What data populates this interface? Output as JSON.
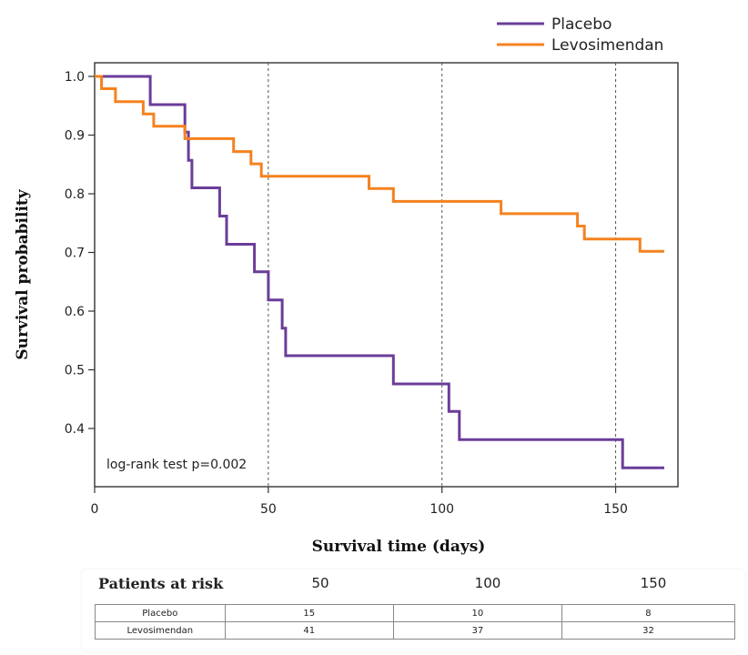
{
  "chart_data": {
    "type": "line",
    "step": true,
    "xlabel": "Survival time (days)",
    "ylabel": "Survival probability",
    "xlim": [
      0,
      155
    ],
    "ylim": [
      0.3,
      1.02
    ],
    "xticks": [
      0,
      50,
      100,
      150
    ],
    "yticks": [
      1.0,
      0.9,
      0.8,
      0.7,
      0.6,
      0.5,
      0.4
    ],
    "vlines": [
      50,
      100,
      150
    ],
    "grid": false,
    "legend_position": "top-right",
    "annotation": "log-rank test p=0.002",
    "series": [
      {
        "name": "Placebo",
        "color": "#6a3d9a",
        "x": [
          0,
          16,
          26,
          27,
          28,
          36,
          38,
          46,
          50,
          54,
          55,
          56,
          86,
          102,
          105,
          152,
          164
        ],
        "y": [
          1.0,
          0.952,
          0.905,
          0.857,
          0.81,
          0.762,
          0.714,
          0.667,
          0.619,
          0.571,
          0.524,
          0.524,
          0.476,
          0.429,
          0.381,
          0.333,
          0.333
        ]
      },
      {
        "name": "Levosimendan",
        "color": "#f5821f",
        "x": [
          0,
          2,
          6,
          14,
          17,
          26,
          40,
          45,
          48,
          79,
          86,
          117,
          139,
          141,
          157,
          164
        ],
        "y": [
          1.0,
          0.979,
          0.957,
          0.936,
          0.915,
          0.894,
          0.872,
          0.851,
          0.83,
          0.809,
          0.787,
          0.766,
          0.745,
          0.723,
          0.702,
          0.702
        ]
      }
    ]
  },
  "risk_table": {
    "title": "Patients at risk",
    "timepoints": [
      "50",
      "100",
      "150"
    ],
    "rows": [
      {
        "label": "Placebo",
        "values": [
          "15",
          "10",
          "8"
        ]
      },
      {
        "label": "Levosimendan",
        "values": [
          "41",
          "37",
          "32"
        ]
      }
    ]
  }
}
